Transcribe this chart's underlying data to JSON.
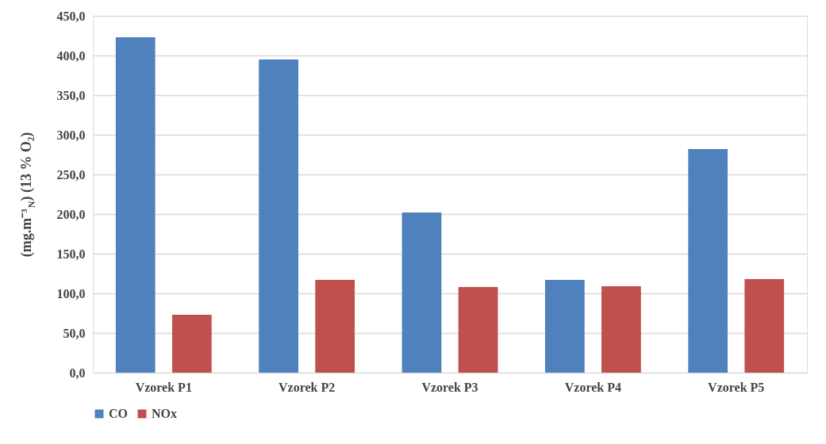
{
  "chart_data": {
    "type": "bar",
    "ylabel": "(mg.m⁻³$_{N}$) (13 % O₂)",
    "categories": [
      "Vzorek P1",
      "Vzorek P2",
      "Vzorek P3",
      "Vzorek P4",
      "Vzorek P5"
    ],
    "series": [
      {
        "name": "CO",
        "color": "#4f81bd",
        "values": [
          423,
          395,
          202,
          117,
          282
        ]
      },
      {
        "name": "NOx",
        "color": "#c0504d",
        "values": [
          73,
          117,
          108,
          109,
          118
        ]
      }
    ],
    "ylim": [
      0,
      450
    ],
    "yticks": [
      {
        "value": 0,
        "label": "0,0"
      },
      {
        "value": 50,
        "label": "50,0"
      },
      {
        "value": 100,
        "label": "100,0"
      },
      {
        "value": 150,
        "label": "150,0"
      },
      {
        "value": 200,
        "label": "200,0"
      },
      {
        "value": 250,
        "label": "250,0"
      },
      {
        "value": 300,
        "label": "300,0"
      },
      {
        "value": 350,
        "label": "350,0"
      },
      {
        "value": 400,
        "label": "400,0"
      },
      {
        "value": 450,
        "label": "450,0"
      }
    ],
    "grid": "y",
    "legend": "bottom"
  }
}
